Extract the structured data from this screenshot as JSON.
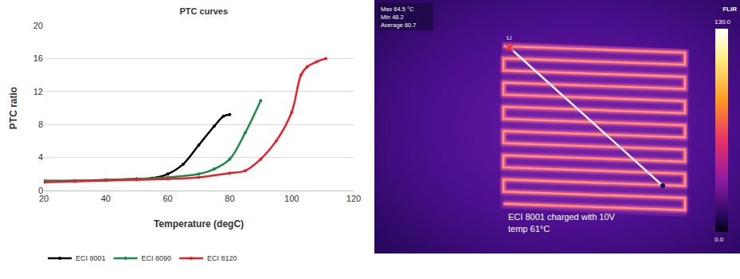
{
  "chart_data": {
    "type": "line",
    "title": "PTC curves",
    "x_label": "Temperature (degC)",
    "y_label": "PTC ratio",
    "xlim": [
      20,
      120
    ],
    "xticks": [
      20,
      40,
      60,
      80,
      100,
      120
    ],
    "ylim": [
      0,
      20
    ],
    "yticks": [
      0,
      4,
      8,
      12,
      16,
      20
    ],
    "grid": true,
    "legend": "bottom left",
    "marker": "circle",
    "series": [
      {
        "name": "ECI 8001",
        "color": "#000000",
        "x": [
          20,
          30,
          40,
          50,
          55,
          60,
          65,
          70,
          75,
          78,
          80
        ],
        "values": [
          1.1,
          1.15,
          1.25,
          1.4,
          1.5,
          2.0,
          3.2,
          5.5,
          7.8,
          9.0,
          9.2
        ]
      },
      {
        "name": "ECI 8090",
        "color": "#1a8a4a",
        "x": [
          20,
          30,
          40,
          50,
          60,
          70,
          75,
          80,
          85,
          90
        ],
        "values": [
          1.2,
          1.2,
          1.3,
          1.4,
          1.6,
          2.0,
          2.6,
          3.8,
          7.0,
          10.9
        ]
      },
      {
        "name": "ECI 8120",
        "color": "#e8202a",
        "x": [
          20,
          30,
          40,
          50,
          60,
          70,
          80,
          85,
          90,
          95,
          100,
          103,
          105,
          108,
          111
        ],
        "values": [
          1.0,
          1.1,
          1.2,
          1.3,
          1.4,
          1.6,
          2.1,
          2.4,
          3.8,
          6.0,
          9.5,
          14.0,
          15.0,
          15.6,
          16.0
        ]
      }
    ]
  },
  "thermal_image": {
    "readout": [
      "Max 64.5 °C",
      "Min 48.2",
      "Average 60.7"
    ],
    "brand": "FLIR",
    "scale_top": "130.0",
    "scale_bottom": "0.0",
    "line_label": "Li",
    "caption": [
      "ECI 8001 charged with 10V",
      "temp 61°C"
    ]
  }
}
